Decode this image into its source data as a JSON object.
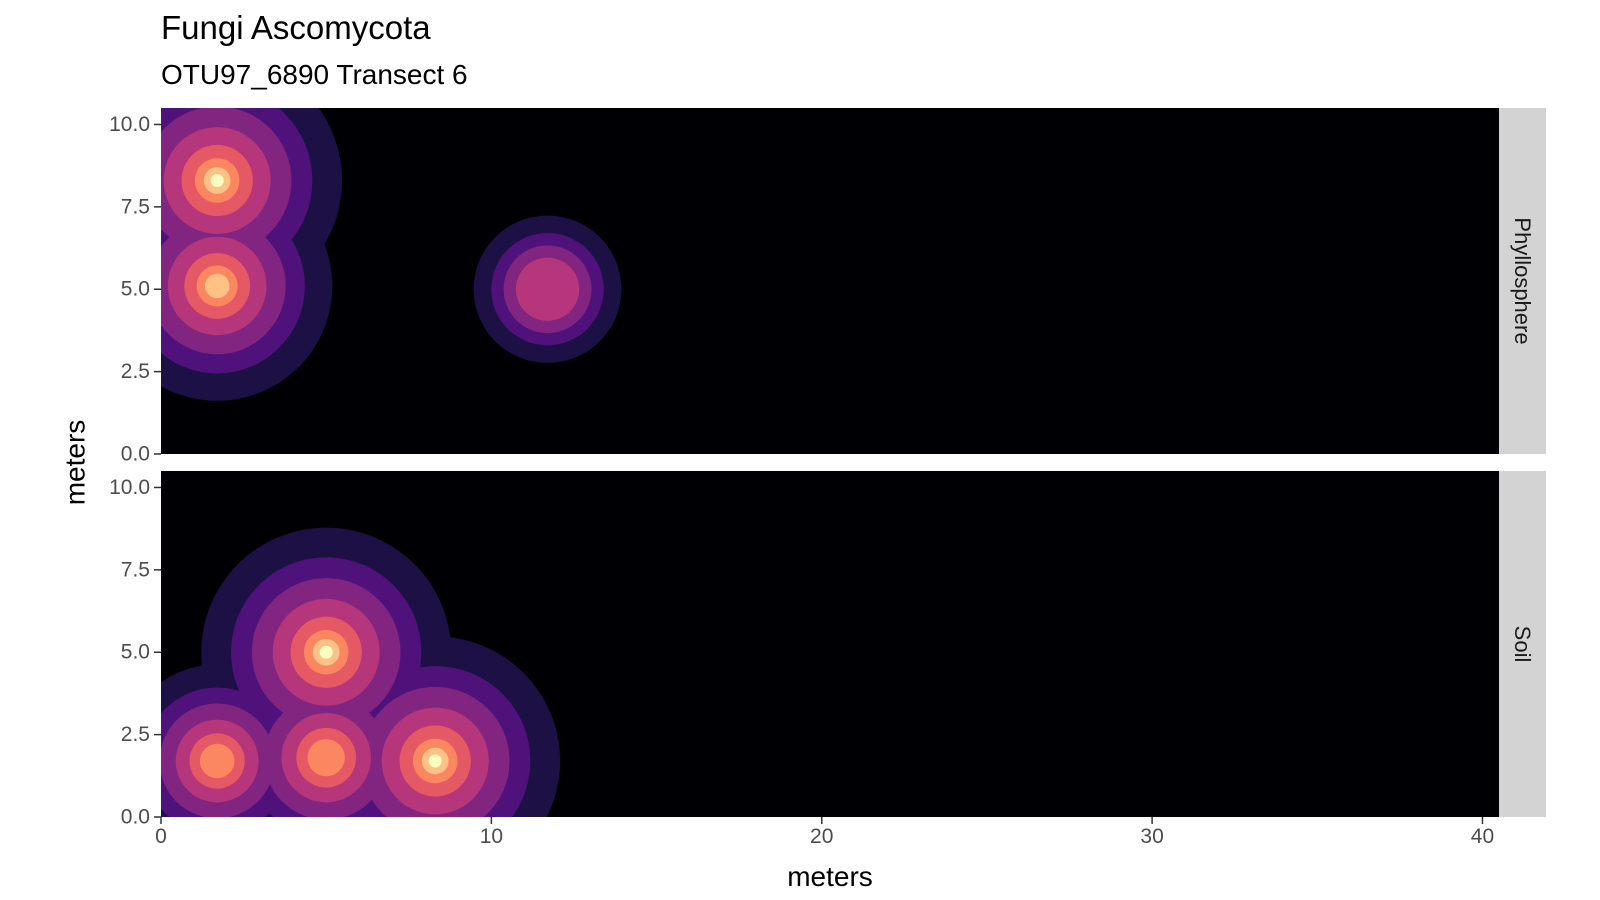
{
  "chart_data": {
    "type": "heatmap",
    "title": "Fungi Ascomycota",
    "subtitle": "OTU97_6890 Transect 6",
    "xlabel": "meters",
    "ylabel": "meters",
    "xlim": [
      0,
      40.5
    ],
    "ylim": [
      0,
      10.5
    ],
    "x_ticks": [
      "0",
      "10",
      "20",
      "30",
      "40"
    ],
    "x_tick_values": [
      0,
      10,
      20,
      30,
      40
    ],
    "y_ticks": [
      "0.0",
      "2.5",
      "5.0",
      "7.5",
      "10.0"
    ],
    "y_tick_values": [
      0,
      2.5,
      5,
      7.5,
      10
    ],
    "grid": false,
    "legend": "none",
    "colormap": [
      "#000004",
      "#1c1044",
      "#4f127b",
      "#812581",
      "#b5367a",
      "#e55964",
      "#fb8761",
      "#fec287",
      "#fcfdbf"
    ],
    "panels": [
      {
        "label": "Phyllosphere",
        "hotspots": [
          {
            "x": 1.7,
            "y": 8.3,
            "intensity": 1.0
          },
          {
            "x": 1.7,
            "y": 5.1,
            "intensity": 0.85
          },
          {
            "x": 11.7,
            "y": 5.0,
            "intensity": 0.35
          }
        ]
      },
      {
        "label": "Soil",
        "hotspots": [
          {
            "x": 5.0,
            "y": 5.0,
            "intensity": 1.0
          },
          {
            "x": 8.3,
            "y": 1.7,
            "intensity": 1.0
          },
          {
            "x": 5.0,
            "y": 1.8,
            "intensity": 0.7
          },
          {
            "x": 1.7,
            "y": 1.7,
            "intensity": 0.6
          }
        ]
      }
    ]
  }
}
